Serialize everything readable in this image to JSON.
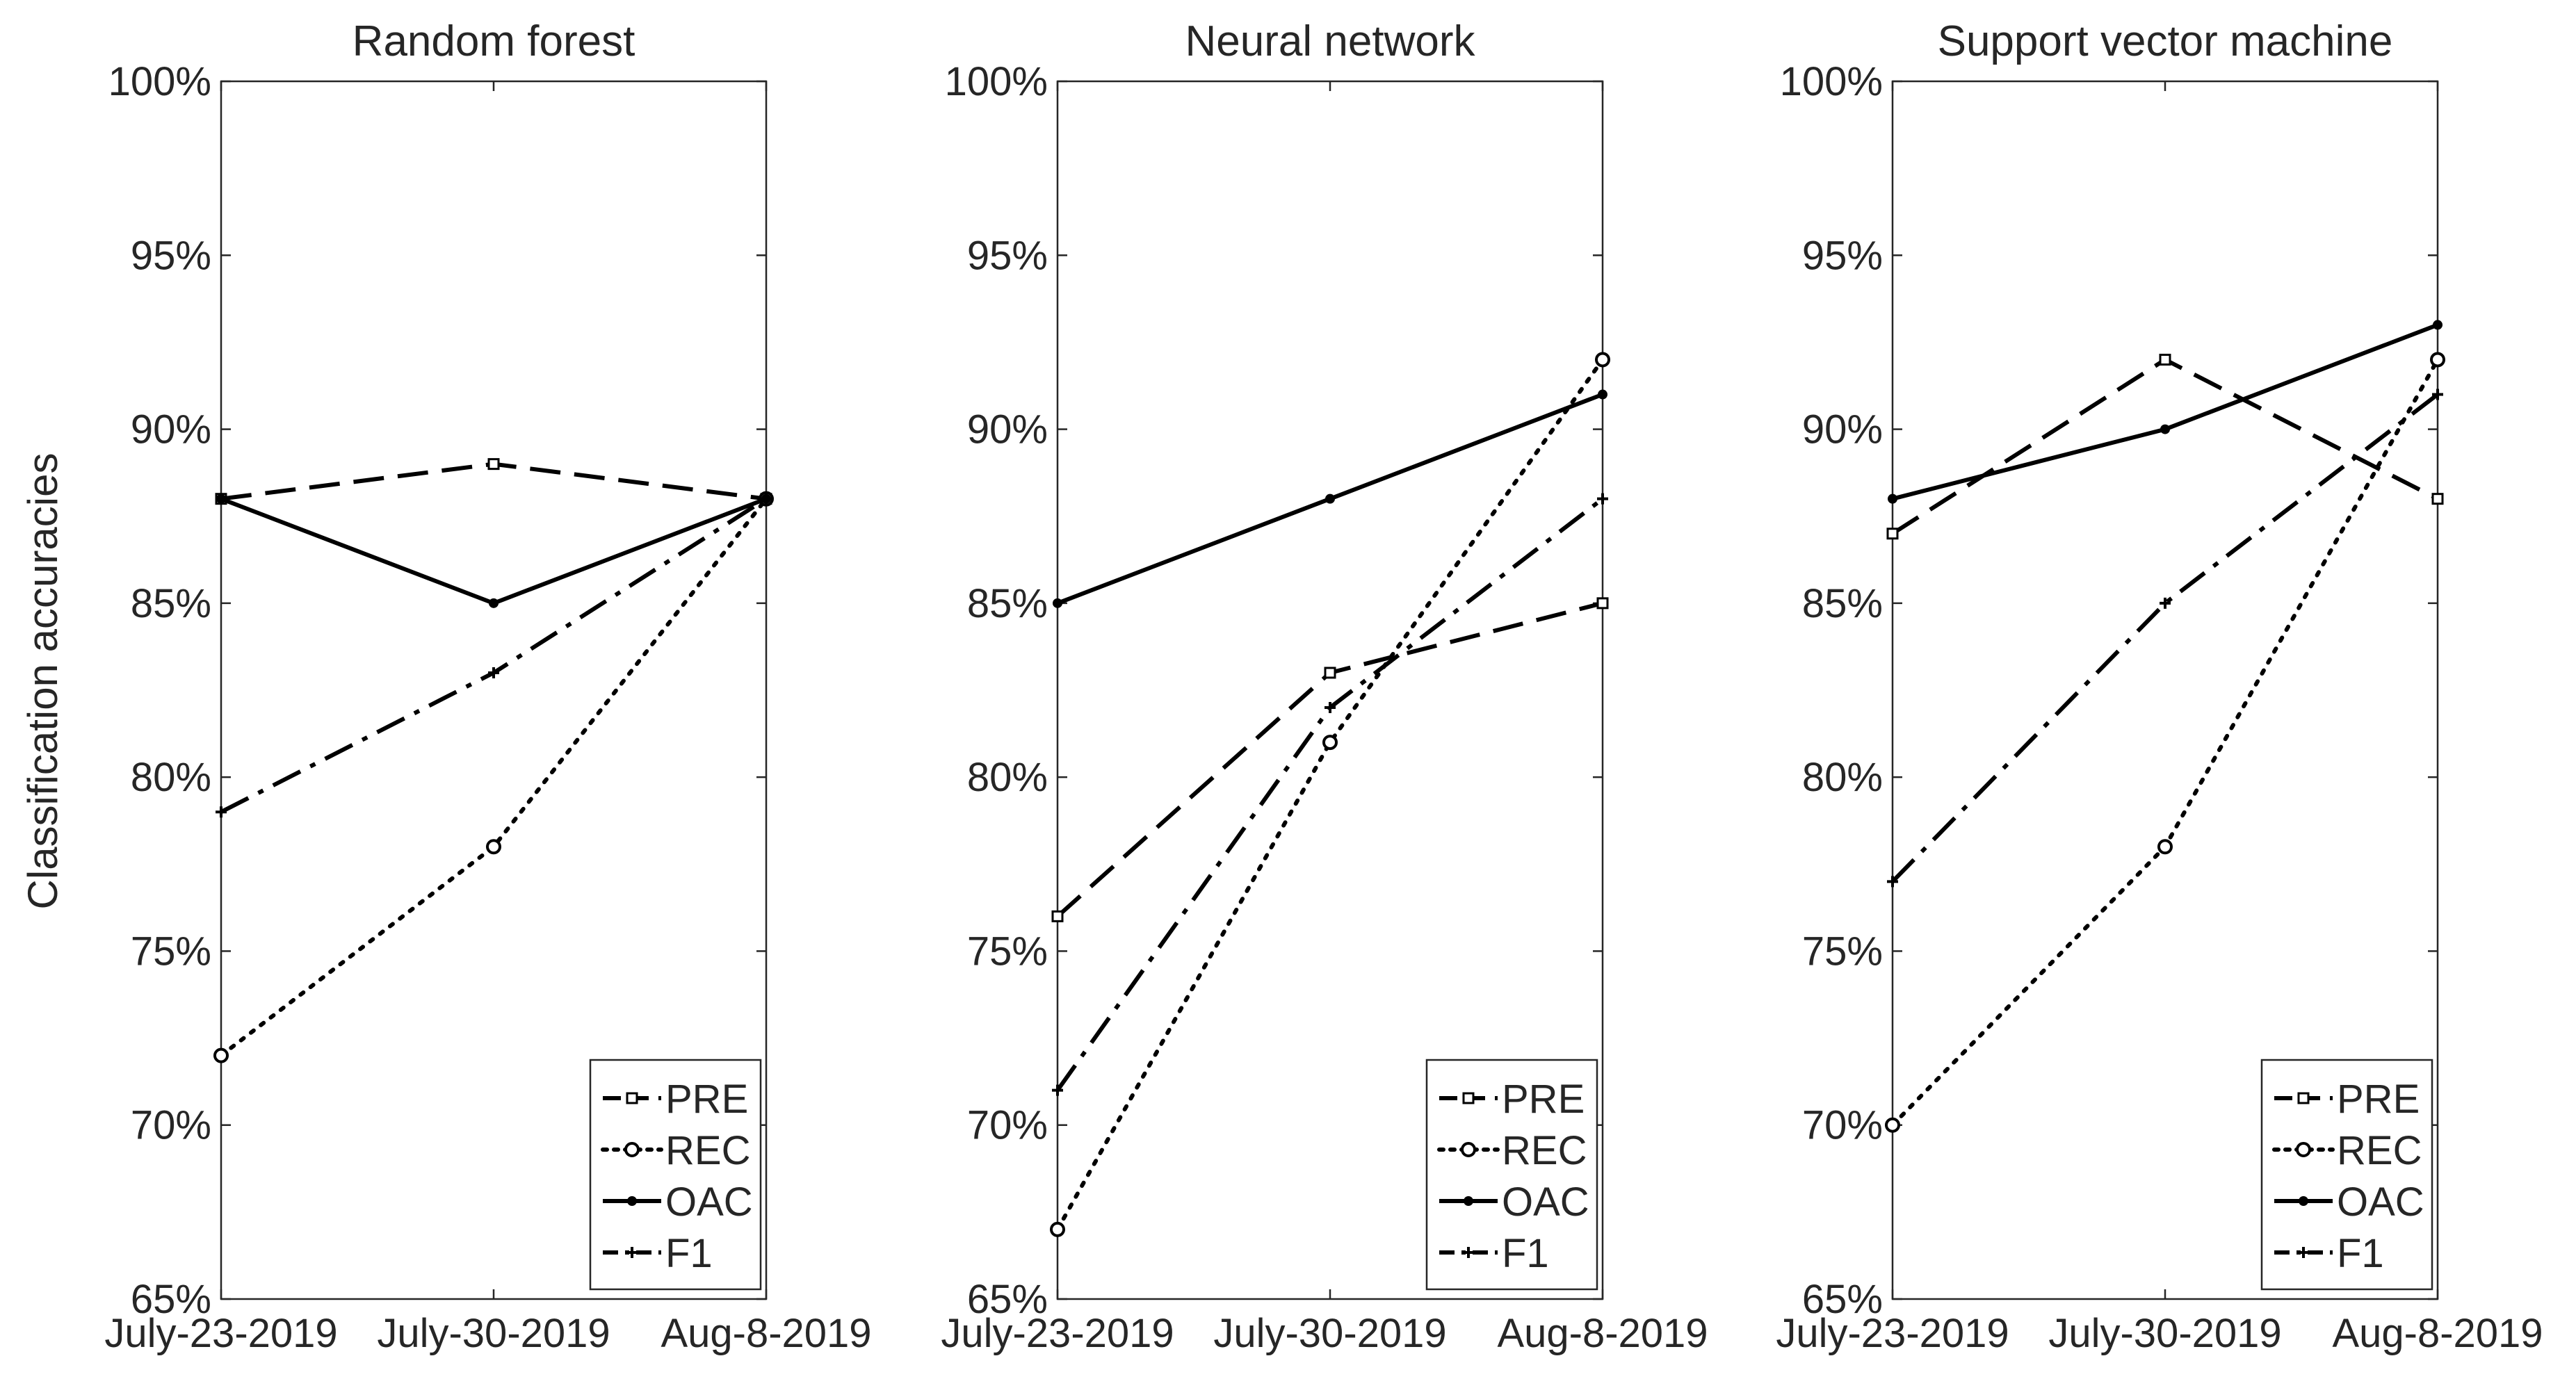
{
  "figure": {
    "ylabel": "Classification accuracies"
  },
  "chart_data": [
    {
      "type": "line",
      "title": "Random forest",
      "xlabel": "",
      "ylabel": "Classification accuracies",
      "categories": [
        "July-23-2019",
        "July-30-2019",
        "Aug-8-2019"
      ],
      "ylim": [
        65,
        100
      ],
      "yticks": [
        65,
        70,
        75,
        80,
        85,
        90,
        95,
        100
      ],
      "ytick_labels": [
        "65%",
        "70%",
        "75%",
        "80%",
        "85%",
        "90%",
        "95%",
        "100%"
      ],
      "legend_position": "bottom-right",
      "series": [
        {
          "name": "PRE",
          "values": [
            88,
            89,
            88
          ]
        },
        {
          "name": "REC",
          "values": [
            72,
            78,
            88
          ]
        },
        {
          "name": "OAC",
          "values": [
            88,
            85,
            88
          ]
        },
        {
          "name": "F1",
          "values": [
            79,
            83,
            88
          ]
        }
      ]
    },
    {
      "type": "line",
      "title": "Neural network",
      "xlabel": "",
      "ylabel": "",
      "categories": [
        "July-23-2019",
        "July-30-2019",
        "Aug-8-2019"
      ],
      "ylim": [
        65,
        100
      ],
      "yticks": [
        65,
        70,
        75,
        80,
        85,
        90,
        95,
        100
      ],
      "ytick_labels": [
        "65%",
        "70%",
        "75%",
        "80%",
        "85%",
        "90%",
        "95%",
        "100%"
      ],
      "legend_position": "bottom-right",
      "series": [
        {
          "name": "PRE",
          "values": [
            76,
            83,
            85
          ]
        },
        {
          "name": "REC",
          "values": [
            67,
            81,
            92
          ]
        },
        {
          "name": "OAC",
          "values": [
            85,
            88,
            91
          ]
        },
        {
          "name": "F1",
          "values": [
            71,
            82,
            88
          ]
        }
      ]
    },
    {
      "type": "line",
      "title": "Support vector machine",
      "xlabel": "",
      "ylabel": "",
      "categories": [
        "July-23-2019",
        "July-30-2019",
        "Aug-8-2019"
      ],
      "ylim": [
        65,
        100
      ],
      "yticks": [
        65,
        70,
        75,
        80,
        85,
        90,
        95,
        100
      ],
      "ytick_labels": [
        "65%",
        "70%",
        "75%",
        "80%",
        "85%",
        "90%",
        "95%",
        "100%"
      ],
      "legend_position": "bottom-right",
      "series": [
        {
          "name": "PRE",
          "values": [
            87,
            92,
            88
          ]
        },
        {
          "name": "REC",
          "values": [
            70,
            78,
            92
          ]
        },
        {
          "name": "OAC",
          "values": [
            88,
            90,
            93
          ]
        },
        {
          "name": "F1",
          "values": [
            77,
            85,
            91
          ]
        }
      ]
    }
  ]
}
